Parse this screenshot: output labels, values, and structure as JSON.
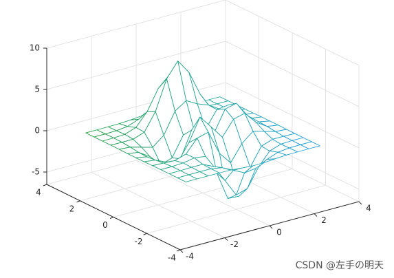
{
  "chart_data": {
    "type": "mesh",
    "x": [
      -3,
      -2.5,
      -2,
      -1.5,
      -1,
      -0.5,
      0,
      0.5,
      1,
      1.5,
      2,
      2.5,
      3
    ],
    "y": [
      -3,
      -2.5,
      -2,
      -1.5,
      -1,
      -0.5,
      0,
      0.5,
      1,
      1.5,
      2,
      2.5,
      3
    ],
    "z": [
      [
        0,
        0,
        0,
        0,
        -0.03,
        -0.14,
        -0.24,
        -0.22,
        -0.11,
        -0.03,
        -0.01,
        0,
        0
      ],
      [
        0,
        0,
        0.01,
        0,
        -0.23,
        -0.91,
        -1.57,
        -1.41,
        -0.69,
        -0.18,
        -0.03,
        0,
        0
      ],
      [
        0,
        0.01,
        0.05,
        0.05,
        -0.59,
        -2.64,
        -4.75,
        -4.34,
        -2.1,
        -0.53,
        -0.06,
        0,
        0
      ],
      [
        0,
        0.01,
        0.08,
        0.33,
        0.15,
        -2.19,
        -5.68,
        -5.76,
        -2.63,
        -0.44,
        0.04,
        0.03,
        0
      ],
      [
        -0.01,
        -0.06,
        -0.13,
        0.3,
        1.86,
        2.22,
        -0.72,
        -2.22,
        -0.27,
        0.88,
        0.5,
        0.11,
        0.01
      ],
      [
        -0.03,
        -0.2,
        -0.8,
        -1.21,
        0.8,
        3.55,
        2,
        0.39,
        2.2,
        2.56,
        1.12,
        0.24,
        0.03
      ],
      [
        -0.04,
        -0.3,
        -1.33,
        -2.77,
        -1.65,
        1.48,
        0.98,
        0.38,
        2.94,
        3.27,
        1.41,
        0.3,
        0.03
      ],
      [
        -0.03,
        -0.25,
        -1.12,
        -2.49,
        -2,
        0.39,
        0.46,
        0.38,
        2.38,
        2.56,
        1.09,
        0.23,
        0.03
      ],
      [
        -0.01,
        -0.11,
        -0.48,
        -0.86,
        0.23,
        2.79,
        3.69,
        2.94,
        2.43,
        1.58,
        0.58,
        0.11,
        0.01
      ],
      [
        0,
        -0.02,
        -0.01,
        0.47,
        2.61,
        6.2,
        8,
        6.25,
        3.25,
        1.18,
        0.29,
        0.05,
        0
      ],
      [
        0,
        0.01,
        0.08,
        0.55,
        2.1,
        4.55,
        5.85,
        4.56,
        2.21,
        0.68,
        0.13,
        0.02,
        0
      ],
      [
        0,
        0,
        0.03,
        0.19,
        0.69,
        1.47,
        1.88,
        1.47,
        0.7,
        0.21,
        0.04,
        0,
        0
      ],
      [
        0,
        0,
        0.01,
        0.03,
        0.11,
        0.23,
        0.3,
        0.23,
        0.11,
        0.03,
        0.01,
        0,
        0
      ]
    ],
    "xlim": [
      -4,
      4
    ],
    "ylim": [
      -4,
      4
    ],
    "zlim": [
      -6.5,
      10
    ],
    "xticks": [
      -4,
      -2,
      0,
      2,
      4
    ],
    "yticks": [
      -4,
      -2,
      0,
      2,
      4
    ],
    "zticks": [
      -5,
      0,
      5,
      10
    ],
    "grid": true,
    "colors": [
      "#23a040",
      "#27a89a",
      "#1f9ee2"
    ]
  },
  "watermark": "CSDN @左手の明天"
}
